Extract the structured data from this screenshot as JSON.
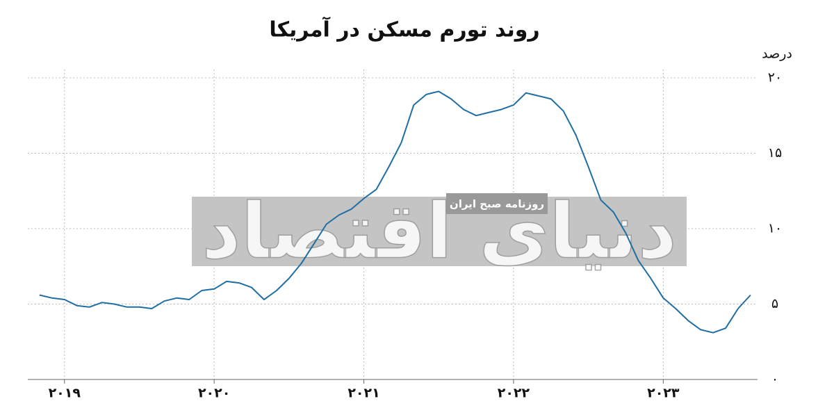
{
  "chart_data": {
    "type": "line",
    "title": "روند تورم مسکن در آمریکا",
    "y_label": "درصد",
    "watermark": [
      "دنیای اقتصاد",
      "روزنامه صبح ایران"
    ],
    "x": [
      2018.833,
      2018.917,
      2019,
      2019.083,
      2019.167,
      2019.25,
      2019.333,
      2019.417,
      2019.5,
      2019.583,
      2019.667,
      2019.75,
      2019.833,
      2019.917,
      2020,
      2020.083,
      2020.167,
      2020.25,
      2020.333,
      2020.417,
      2020.5,
      2020.583,
      2020.667,
      2020.75,
      2020.833,
      2020.917,
      2021,
      2021.083,
      2021.167,
      2021.25,
      2021.333,
      2021.417,
      2021.5,
      2021.583,
      2021.667,
      2021.75,
      2021.833,
      2021.917,
      2022,
      2022.083,
      2022.167,
      2022.25,
      2022.333,
      2022.417,
      2022.5,
      2022.583,
      2022.667,
      2022.75,
      2022.833,
      2022.917,
      2023,
      2023.083,
      2023.167,
      2023.25,
      2023.333,
      2023.417,
      2023.5,
      2023.583
    ],
    "series": [
      {
        "name": "تورم مسکن",
        "color": "#1f6ea3",
        "values": [
          5.6,
          5.4,
          5.3,
          4.9,
          4.8,
          5.1,
          5.0,
          4.8,
          4.8,
          4.7,
          5.2,
          5.4,
          5.3,
          5.9,
          6.0,
          6.5,
          6.4,
          6.1,
          5.3,
          5.9,
          6.7,
          7.7,
          9.0,
          10.3,
          10.9,
          11.3,
          12.0,
          12.6,
          14.1,
          15.7,
          18.2,
          18.9,
          19.1,
          18.6,
          17.9,
          17.5,
          17.7,
          17.9,
          18.2,
          19.0,
          18.8,
          18.6,
          17.8,
          16.2,
          14.1,
          11.9,
          11.1,
          9.7,
          7.9,
          6.7,
          5.4,
          4.7,
          3.9,
          3.3,
          3.1,
          3.4,
          4.7,
          5.6
        ]
      }
    ],
    "xlim": [
      2018.755,
      2023.63
    ],
    "xticks": [
      {
        "value": 2019,
        "label": "۲۰۱۹"
      },
      {
        "value": 2020,
        "label": "۲۰۲۰"
      },
      {
        "value": 2021,
        "label": "۲۰۲۱"
      },
      {
        "value": 2022,
        "label": "۲۰۲۲"
      },
      {
        "value": 2023,
        "label": "۲۰۲۳"
      }
    ],
    "ylim": [
      0,
      20
    ],
    "yticks": [
      {
        "value": 0,
        "label": "۰"
      },
      {
        "value": 5,
        "label": "۵"
      },
      {
        "value": 10,
        "label": "۱۰"
      },
      {
        "value": 15,
        "label": "۱۵"
      },
      {
        "value": 20,
        "label": "۲۰"
      }
    ],
    "grid": true
  }
}
